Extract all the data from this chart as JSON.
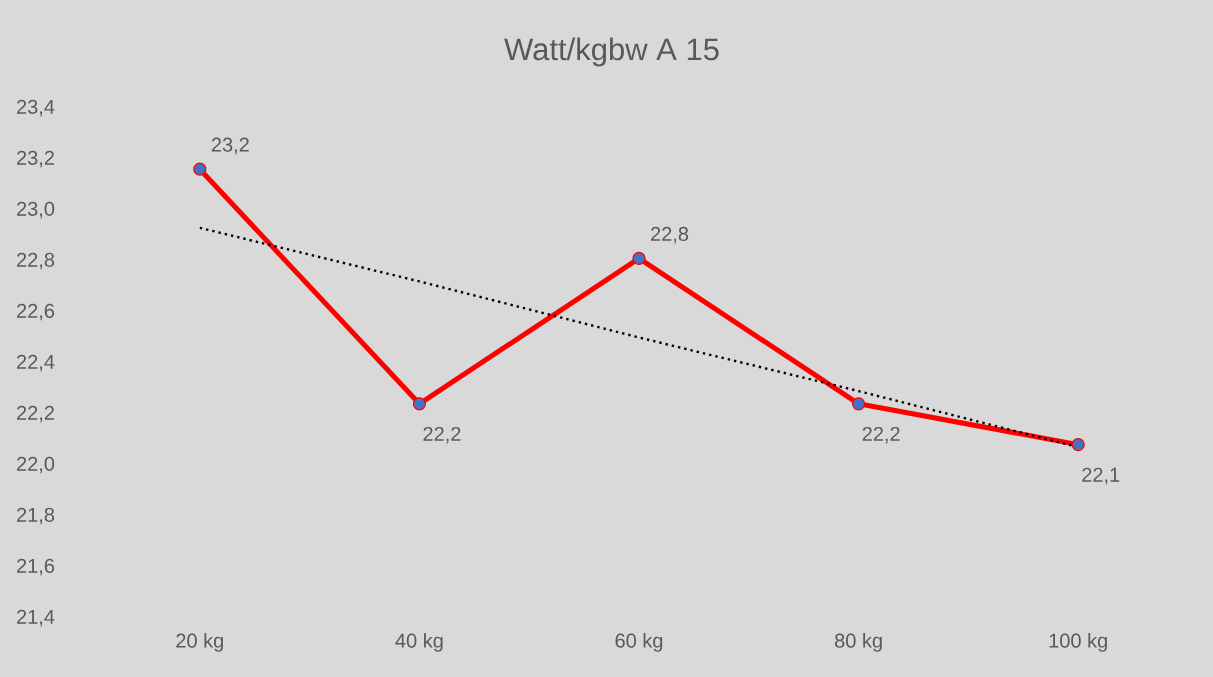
{
  "chart_data": {
    "type": "line",
    "title": "Watt/kgbw A 15",
    "categories": [
      "20 kg",
      "40 kg",
      "60 kg",
      "80 kg",
      "100 kg"
    ],
    "series": [
      {
        "color": "#ff0000",
        "marker": "circle",
        "values": [
          23.16,
          22.24,
          22.81,
          22.24,
          22.08
        ],
        "value_labels": [
          "23,2",
          "22,2",
          "22,8",
          "22,2",
          "22,1"
        ]
      },
      {
        "type": "line",
        "color": "#000000",
        "marker": "none",
        "line_style": "dotted",
        "values": [
          22.93,
          22.72,
          22.5,
          22.29,
          22.07
        ]
      }
    ],
    "ylim": [
      21.4,
      23.4
    ],
    "yticks": [
      {
        "value": 21.4,
        "label": "21,4"
      },
      {
        "value": 21.6,
        "label": "21,6"
      },
      {
        "value": 21.8,
        "label": "21,8"
      },
      {
        "value": 22.0,
        "label": "22,0"
      },
      {
        "value": 22.2,
        "label": "22,2"
      },
      {
        "value": 22.4,
        "label": "22,4"
      },
      {
        "value": 22.6,
        "label": "22,6"
      },
      {
        "value": 22.8,
        "label": "22,8"
      },
      {
        "value": 23.0,
        "label": "23,0"
      },
      {
        "value": 23.2,
        "label": "23,2"
      },
      {
        "value": 23.4,
        "label": "23,4"
      }
    ]
  }
}
